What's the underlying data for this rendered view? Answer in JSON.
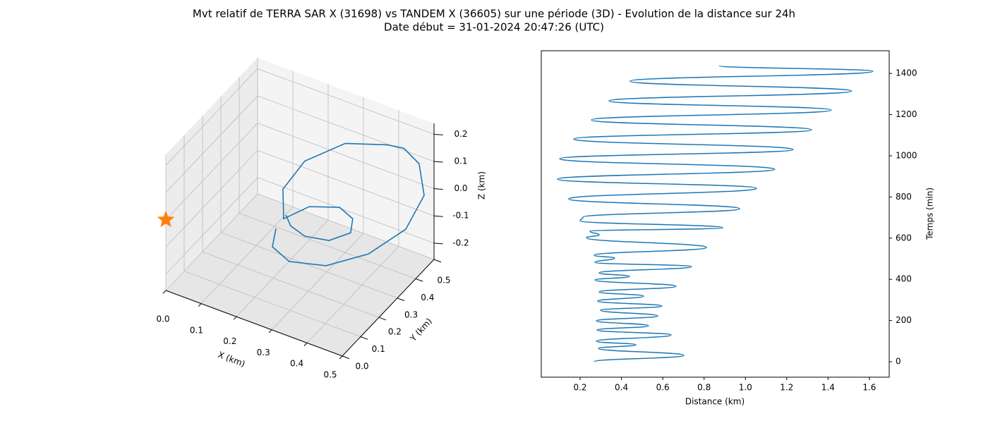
{
  "title": "Mvt relatif de TERRA SAR X (31698) vs TANDEM X (36605) sur une période (3D) - Evolution de la distance sur 24h",
  "subtitle": "Date début = 31-01-2024 20:47:26 (UTC)",
  "chart_data": [
    {
      "type": "line3d",
      "xlabel": "X (km)",
      "ylabel": "Y (km)",
      "zlabel": "Z (km)",
      "xlim": [
        0,
        0.5
      ],
      "ylim": [
        0,
        0.5
      ],
      "zlim": [
        -0.26,
        0.24
      ],
      "xticks": [
        {
          "value": 0,
          "label": "0.0"
        },
        0.1,
        0.2,
        0.3,
        0.4,
        0.5
      ],
      "yticks": [
        {
          "value": 0,
          "label": "0.0"
        },
        0.1,
        0.2,
        0.3,
        0.4,
        0.5
      ],
      "zticks": [
        -0.2,
        -0.1,
        {
          "value": 0,
          "label": "0.0"
        },
        0.1,
        0.2
      ],
      "grid": true,
      "series": [
        {
          "color": "#1f77b4",
          "x": [
            0.205,
            0.198,
            0.231,
            0.304,
            0.388,
            0.462,
            0.498,
            0.488,
            0.458,
            0.425,
            0.342,
            0.262,
            0.219,
            0.22,
            0.271,
            0.331,
            0.357,
            0.353,
            0.31,
            0.262,
            0.234,
            0.225
          ],
          "y": [
            0.206,
            0.2,
            0.228,
            0.288,
            0.358,
            0.419,
            0.45,
            0.442,
            0.416,
            0.39,
            0.32,
            0.253,
            0.217,
            0.219,
            0.26,
            0.31,
            0.332,
            0.328,
            0.293,
            0.253,
            0.23,
            0.222
          ],
          "z": [
            -0.08,
            -0.146,
            -0.204,
            -0.227,
            -0.193,
            -0.11,
            0.01,
            0.127,
            0.188,
            0.203,
            0.218,
            0.162,
            0.064,
            -0.046,
            -0.006,
            -0.015,
            -0.06,
            -0.111,
            -0.135,
            -0.114,
            -0.073,
            -0.032
          ]
        }
      ],
      "marker": {
        "x": 0,
        "y": 0,
        "z": 0,
        "color": "#ff7f0e"
      }
    },
    {
      "type": "line",
      "xlabel": "Distance (km)",
      "ylabel": "Temps (min)",
      "xlim": [
        0.012,
        1.696
      ],
      "ylim": [
        -75,
        1510
      ],
      "xticks": [
        0.2,
        0.4,
        0.6,
        0.8,
        {
          "value": 1,
          "label": "1.0"
        },
        1.2,
        1.4,
        1.6
      ],
      "yticks": [
        0,
        200,
        400,
        600,
        800,
        1000,
        1200,
        1400
      ],
      "series": [
        {
          "color": "#1f77b4",
          "x": [
            0.268,
            0.702,
            0.289,
            0.47,
            0.279,
            0.64,
            0.282,
            0.531,
            0.279,
            0.576,
            0.299,
            0.596,
            0.285,
            0.507,
            0.292,
            0.664,
            0.272,
            0.439,
            0.292,
            0.739,
            0.272,
            0.367,
            0.268,
            0.811,
            0.231,
            0.292,
            0.248,
            0.89,
            0.2,
            0.214,
            0.972,
            0.145,
            1.054,
            0.091,
            1.142,
            0.101,
            1.231,
            0.169,
            1.32,
            0.255,
            1.415,
            0.34,
            1.514,
            0.442,
            1.617,
            0.873
          ],
          "y": [
            0,
            30.8,
            65,
            82.2,
            99.3,
            130.1,
            154,
            174.6,
            198.5,
            222.5,
            249.9,
            270.4,
            294.4,
            318.4,
            338.9,
            366.3,
            397.1,
            414.2,
            431.3,
            462.1,
            482.6,
            503.2,
            516.9,
            554.5,
            602.5,
            616.2,
            633.3,
            650.4,
            684.6,
            701.7,
            742.8,
            790.7,
            842.1,
            886.6,
            934.5,
            985.8,
            1030.3,
            1081.7,
            1126.2,
            1174.1,
            1222,
            1266.5,
            1314.4,
            1362.4,
            1410.3,
            1437.7
          ]
        }
      ]
    }
  ]
}
